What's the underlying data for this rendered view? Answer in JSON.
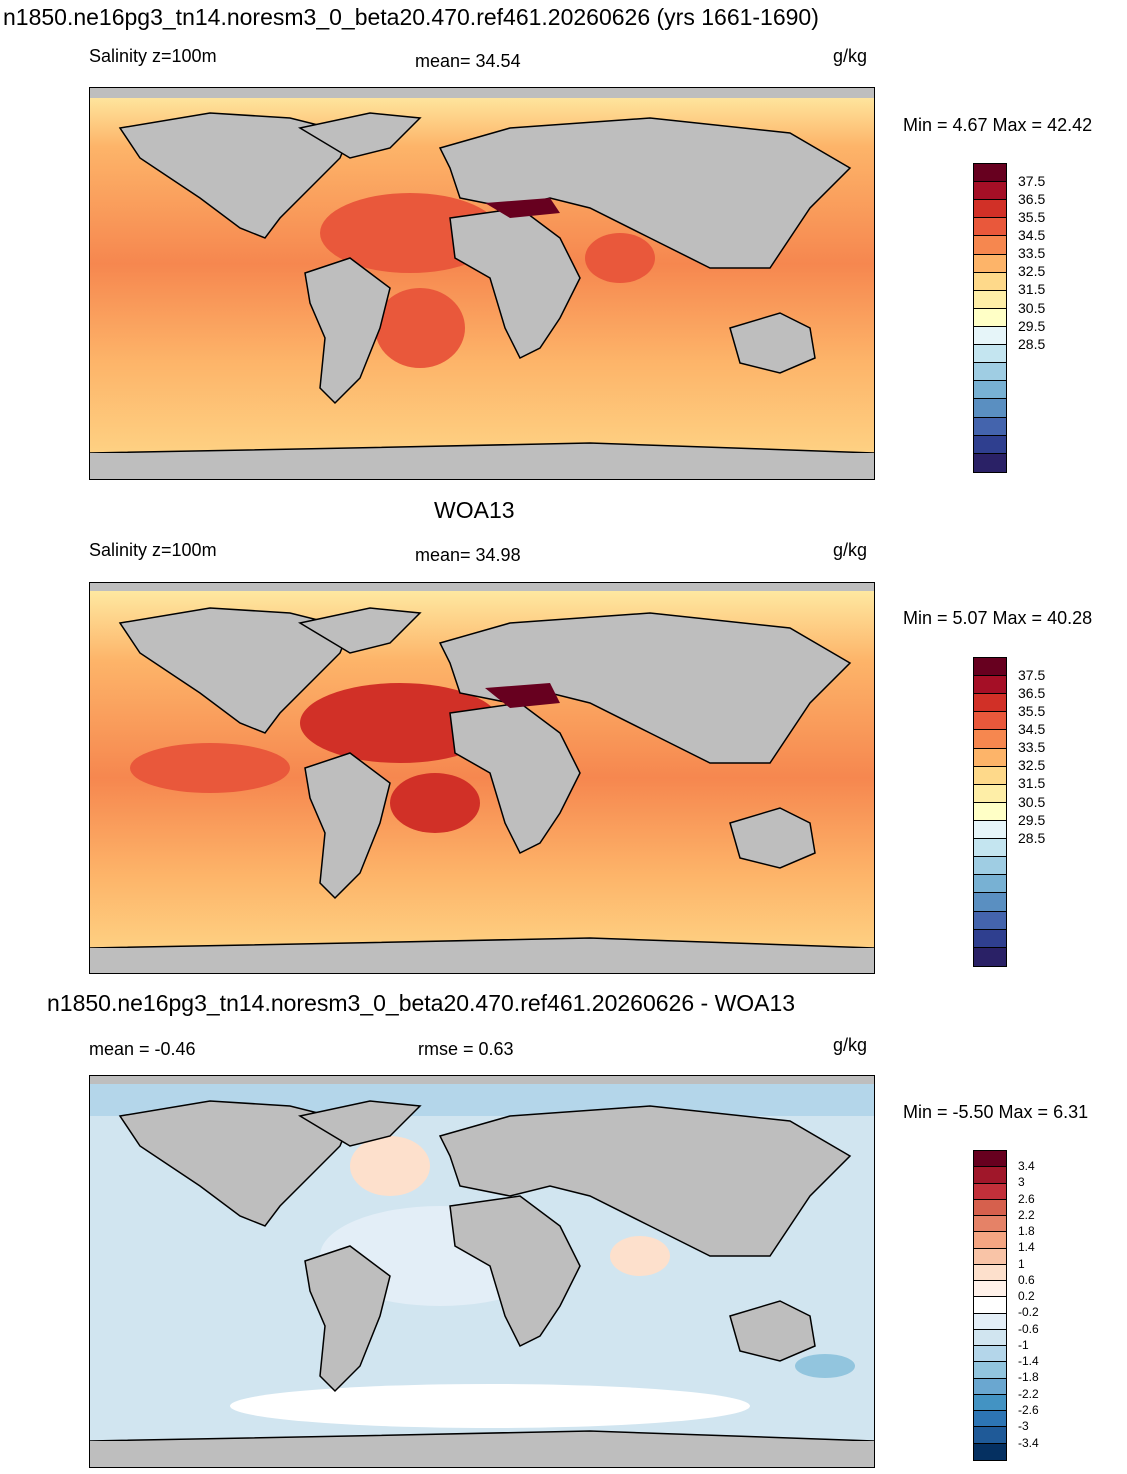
{
  "page": {
    "title1": "n1850.ne16pg3_tn14.noresm3_0_beta20.470.ref461.20260626 (yrs 1661-1690)",
    "title2": "WOA13",
    "title3": "n1850.ne16pg3_tn14.noresm3_0_beta20.470.ref461.20260626 - WOA13"
  },
  "panels": [
    {
      "left_label": "Salinity z=100m",
      "center_label": "mean=  34.54",
      "units": "g/kg",
      "minmax": "Min =    4.67 Max =  42.42"
    },
    {
      "left_label": "Salinity z=100m",
      "center_label": "mean=  34.98",
      "units": "g/kg",
      "minmax": "Min =    5.07 Max =  40.28"
    },
    {
      "left_label": "mean =  -0.46",
      "center_label": "rmse =   0.63",
      "units": "g/kg",
      "minmax": "Min =  -5.50 Max =    6.31"
    }
  ],
  "colorbar_abs": {
    "labels": [
      "37.5",
      "36.5",
      "35.5",
      "34.5",
      "33.5",
      "32.5",
      "31.5",
      "30.5",
      "29.5",
      "28.5"
    ],
    "colors": [
      "#67001f",
      "#a50f26",
      "#d13027",
      "#e9583b",
      "#f6874f",
      "#fdb469",
      "#fed98a",
      "#feeea7",
      "#ffffc6",
      "#e6f5f9",
      "#c4e5f0",
      "#9fcde3",
      "#78b1d3",
      "#5a8fc1",
      "#4464ad",
      "#2f3f8f",
      "#2a2166"
    ]
  },
  "colorbar_diff": {
    "labels": [
      "3.4",
      "3",
      "2.6",
      "2.2",
      "1.8",
      "1.4",
      "1",
      "0.6",
      "0.2",
      "-0.2",
      "-0.6",
      "-1",
      "-1.4",
      "-1.8",
      "-2.2",
      "-2.6",
      "-3",
      "-3.4"
    ],
    "colors": [
      "#67001f",
      "#a0172a",
      "#c2303a",
      "#d6604d",
      "#e58267",
      "#f4a582",
      "#f9c4a7",
      "#fde0cc",
      "#fff1e9",
      "#ffffff",
      "#e3eef7",
      "#d1e5f0",
      "#b4d6ea",
      "#92c5de",
      "#6aa7d0",
      "#4393c3",
      "#2d75b4",
      "#1f5a98",
      "#053061"
    ]
  },
  "map_colors": {
    "land": "#bebebe",
    "coast": "#000000"
  }
}
